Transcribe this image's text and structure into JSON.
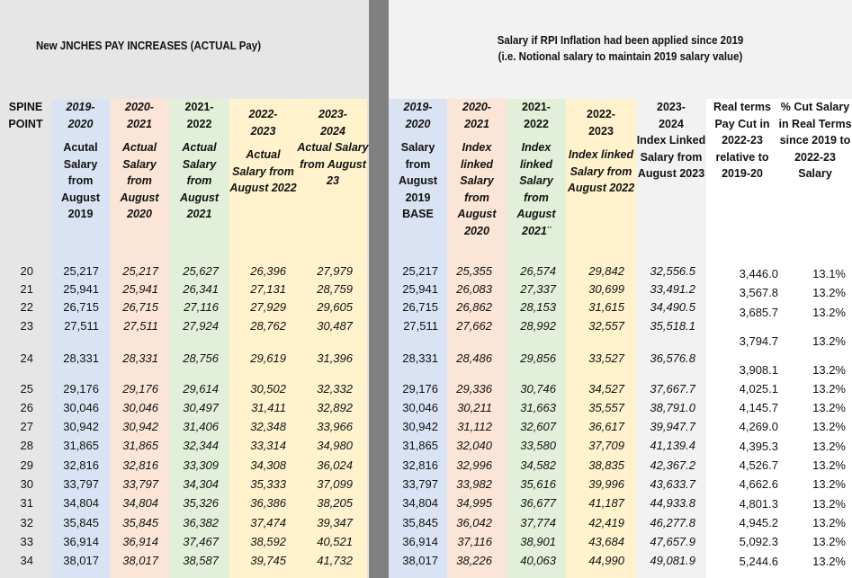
{
  "colors": {
    "panel_left": "#e7e6e6",
    "panel_right_header": "#f2f2f2",
    "divider": "#808080",
    "col_2019": "#dae3f3",
    "col_2020": "#fbe5d6",
    "col_2021": "#e2f0d9",
    "col_2022": "#fff2cc",
    "col_2023_index": "#f2f2f2",
    "col_cut": "#ffffff"
  },
  "left": {
    "title": "New JNCHES PAY INCREASES (ACTUAL Pay)",
    "headers": [
      {
        "year": "SPINE POINT",
        "desc": ""
      },
      {
        "year": "2019-2020",
        "desc": "Acutal Salary from August 2019"
      },
      {
        "year": "2020-2021",
        "desc": "Actual Salary from August 2020"
      },
      {
        "year": "2021-2022",
        "desc": "Actual Salary from August 2021"
      },
      {
        "year": "2022-2023",
        "desc": "Actual Salary from August 2022"
      },
      {
        "year": "2023-2024",
        "desc": "Actual Salary from August 23"
      }
    ]
  },
  "right": {
    "title_line1": "Salary if RPI Inflation had been applied since 2019",
    "title_line2": "(i.e. Notional salary to maintain 2019 salary value)",
    "headers": [
      {
        "year": "2019-2020",
        "desc": "Salary from August 2019 BASE"
      },
      {
        "year": "2020-2021",
        "desc": "Index linked Salary from August 2020"
      },
      {
        "year": "2021-2022",
        "desc": "Index linked Salary from August 2021¨"
      },
      {
        "year": "2022-2023",
        "desc": "Index linked Salary from August 2022"
      },
      {
        "year": "2023-2024",
        "desc": "Index Linked Salary from August 2023"
      },
      {
        "year": "",
        "desc": "Real terms Pay Cut in 2022-23 relative to 2019-20"
      },
      {
        "year": "",
        "desc": "% Cut Salary in Real Terms since 2019 to 2022-23 Salary"
      }
    ]
  },
  "rows": [
    {
      "spine": "20",
      "actual": [
        "25,217",
        "25,217",
        "25,627",
        "26,396",
        "27,979"
      ],
      "index": [
        "25,217",
        "25,355",
        "26,574",
        "29,842",
        "32,556.5"
      ],
      "cut": "3,446.0",
      "pct": "13.1%"
    },
    {
      "spine": "21",
      "actual": [
        "25,941",
        "25,941",
        "26,341",
        "27,131",
        "28,759"
      ],
      "index": [
        "25,941",
        "26,083",
        "27,337",
        "30,699",
        "33,491.2"
      ],
      "cut": "3,567.8",
      "pct": "13.2%"
    },
    {
      "spine": "22",
      "actual": [
        "26,715",
        "26,715",
        "27,116",
        "27,929",
        "29,605"
      ],
      "index": [
        "26,715",
        "26,862",
        "28,153",
        "31,615",
        "34,490.5"
      ],
      "cut": "3,685.7",
      "pct": "13.2%"
    },
    {
      "spine": "23",
      "actual": [
        "27,511",
        "27,511",
        "27,924",
        "28,762",
        "30,487"
      ],
      "index": [
        "27,511",
        "27,662",
        "28,992",
        "32,557",
        "35,518.1"
      ],
      "cut": "3,794.7",
      "pct": "13.2%"
    },
    {
      "spine": "24",
      "actual": [
        "28,331",
        "28,331",
        "28,756",
        "29,619",
        "31,396"
      ],
      "index": [
        "28,331",
        "28,486",
        "29,856",
        "33,527",
        "36,576.8"
      ],
      "cut": "3,908.1",
      "pct": "13.2%"
    },
    {
      "spine": "25",
      "actual": [
        "29,176",
        "29,176",
        "29,614",
        "30,502",
        "32,332"
      ],
      "index": [
        "29,176",
        "29,336",
        "30,746",
        "34,527",
        "37,667.7"
      ],
      "cut": "4,025.1",
      "pct": "13.2%"
    },
    {
      "spine": "26",
      "actual": [
        "30,046",
        "30,046",
        "30,497",
        "31,411",
        "32,892"
      ],
      "index": [
        "30,046",
        "30,211",
        "31,663",
        "35,557",
        "38,791.0"
      ],
      "cut": "4,145.7",
      "pct": "13.2%"
    },
    {
      "spine": "27",
      "actual": [
        "30,942",
        "30,942",
        "31,406",
        "32,348",
        "33,966"
      ],
      "index": [
        "30,942",
        "31,112",
        "32,607",
        "36,617",
        "39,947.7"
      ],
      "cut": "4,269.0",
      "pct": "13.2%"
    },
    {
      "spine": "28",
      "actual": [
        "31,865",
        "31,865",
        "32,344",
        "33,314",
        "34,980"
      ],
      "index": [
        "31,865",
        "32,040",
        "33,580",
        "37,709",
        "41,139.4"
      ],
      "cut": "4,395.3",
      "pct": "13.2%"
    },
    {
      "spine": "29",
      "actual": [
        "32,816",
        "32,816",
        "33,309",
        "34,308",
        "36,024"
      ],
      "index": [
        "32,816",
        "32,996",
        "34,582",
        "38,835",
        "42,367.2"
      ],
      "cut": "4,526.7",
      "pct": "13.2%"
    },
    {
      "spine": "30",
      "actual": [
        "33,797",
        "33,797",
        "34,304",
        "35,333",
        "37,099"
      ],
      "index": [
        "33,797",
        "33,982",
        "35,616",
        "39,996",
        "43,633.7"
      ],
      "cut": "4,662.6",
      "pct": "13.2%"
    },
    {
      "spine": "31",
      "actual": [
        "34,804",
        "34,804",
        "35,326",
        "36,386",
        "38,205"
      ],
      "index": [
        "34,804",
        "34,995",
        "36,677",
        "41,187",
        "44,933.8"
      ],
      "cut": "4,801.3",
      "pct": "13.2%"
    },
    {
      "spine": "32",
      "actual": [
        "35,845",
        "35,845",
        "36,382",
        "37,474",
        "39,347"
      ],
      "index": [
        "35,845",
        "36,042",
        "37,774",
        "42,419",
        "46,277.8"
      ],
      "cut": "4,945.2",
      "pct": "13.2%"
    },
    {
      "spine": "33",
      "actual": [
        "36,914",
        "36,914",
        "37,467",
        "38,592",
        "40,521"
      ],
      "index": [
        "36,914",
        "37,116",
        "38,901",
        "43,684",
        "47,657.9"
      ],
      "cut": "5,092.3",
      "pct": "13.2%"
    },
    {
      "spine": "34",
      "actual": [
        "38,017",
        "38,017",
        "38,587",
        "39,745",
        "41,732"
      ],
      "index": [
        "38,017",
        "38,226",
        "40,063",
        "44,990",
        "49,081.9"
      ],
      "cut": "5,244.6",
      "pct": "13.2%"
    }
  ]
}
